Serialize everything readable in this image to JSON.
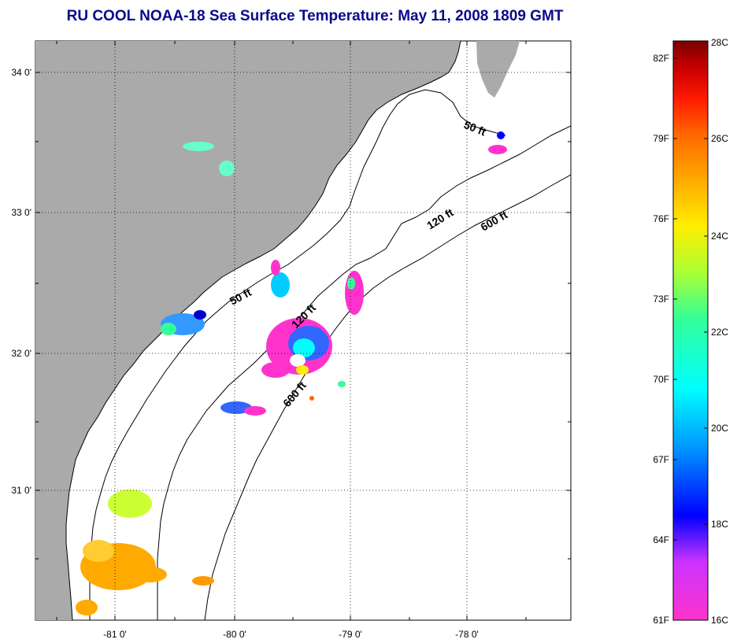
{
  "title": "RU COOL  NOAA-18  Sea Surface Temperature:  May 11, 2008 1809 GMT",
  "axes": {
    "lat_labels": [
      "34 0'",
      "33 0'",
      "32 0'",
      "31 0'"
    ],
    "lon_labels": [
      "-81 0'",
      "-80 0'",
      "-79 0'",
      "-78 0'"
    ]
  },
  "contours": {
    "labels": [
      "50 ft",
      "50 ft",
      "120 ft",
      "120 ft",
      "600 ft",
      "600 ft"
    ]
  },
  "colorbar": {
    "fahrenheit": [
      "82F",
      "79F",
      "76F",
      "73F",
      "70F",
      "67F",
      "64F",
      "61F"
    ],
    "celsius": [
      "28C",
      "26C",
      "24C",
      "22C",
      "20C",
      "18C",
      "16C"
    ],
    "colors": [
      "#7a0000",
      "#cc0000",
      "#ff1a00",
      "#ff6600",
      "#ffaa00",
      "#ffee00",
      "#aaff33",
      "#33ff99",
      "#00ffff",
      "#0099ff",
      "#0000ff",
      "#8800cc",
      "#ff33cc"
    ]
  }
}
